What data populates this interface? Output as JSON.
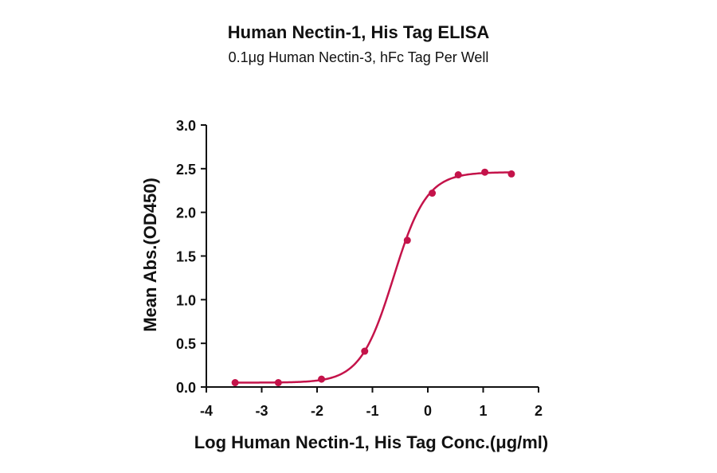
{
  "chart_data": {
    "type": "scatter",
    "title": "Human Nectin-1, His Tag ELISA",
    "subtitle": "0.1μg Human Nectin-3, hFc Tag Per Well",
    "xlabel": "Log Human Nectin-1, His Tag Conc.(μg/ml)",
    "ylabel": "Mean Abs.(OD450)",
    "xlim": [
      -4,
      2
    ],
    "ylim": [
      0,
      3
    ],
    "x_ticks": [
      "-4",
      "-3",
      "-2",
      "-1",
      "0",
      "1",
      "2"
    ],
    "y_ticks": [
      "0.0",
      "0.5",
      "1.0",
      "1.5",
      "2.0",
      "2.5",
      "3.0"
    ],
    "grid": false,
    "color": "#c4134a",
    "points": [
      {
        "x": -3.48,
        "y": 0.05
      },
      {
        "x": -2.7,
        "y": 0.05
      },
      {
        "x": -1.92,
        "y": 0.09
      },
      {
        "x": -1.14,
        "y": 0.41
      },
      {
        "x": -0.37,
        "y": 1.68
      },
      {
        "x": 0.08,
        "y": 2.22
      },
      {
        "x": 0.55,
        "y": 2.43
      },
      {
        "x": 1.03,
        "y": 2.46
      },
      {
        "x": 1.51,
        "y": 2.44
      }
    ],
    "fit": {
      "bottom": 0.05,
      "top": 2.46,
      "logEC50": -0.62,
      "hill": 1.45
    }
  }
}
